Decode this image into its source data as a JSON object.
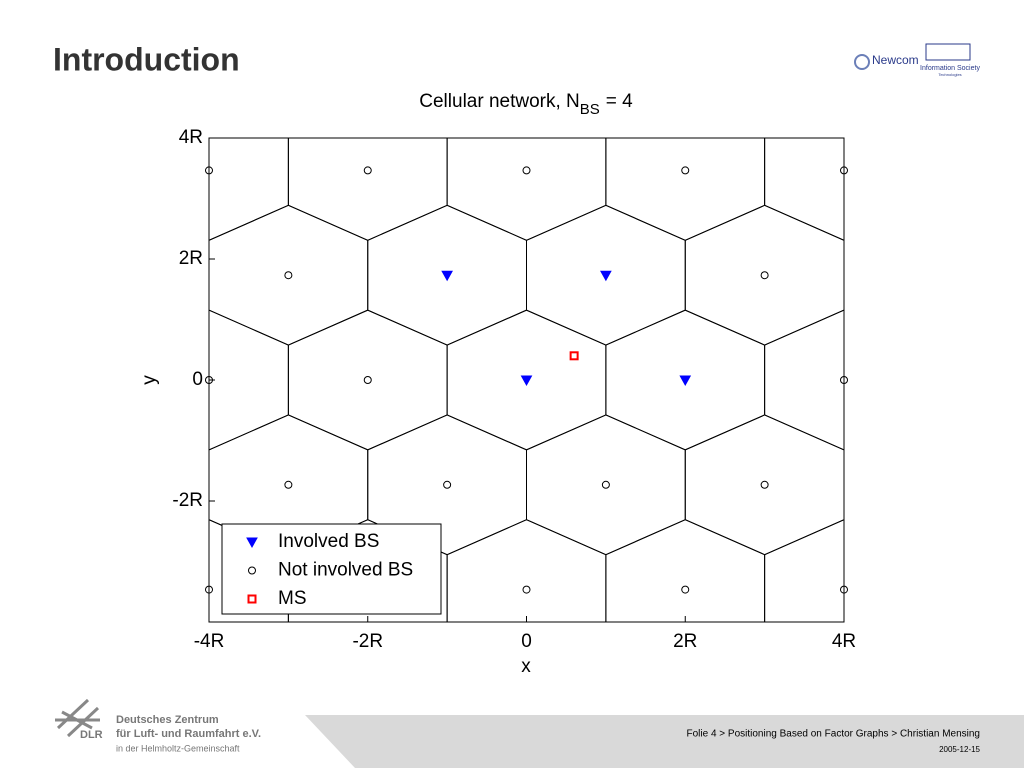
{
  "slide": {
    "heading": "Introduction",
    "logo_newcom": "Newcom",
    "logo_ist": "Information Society",
    "logo_ist_sub": "Technologies",
    "org_abbr": "DLR",
    "org_line1": "Deutsches Zentrum",
    "org_line2": "für Luft- und Raumfahrt e.V.",
    "org_line3": "in der Helmholtz-Gemeinschaft",
    "footer": "Folie 4 > Positioning Based on Factor Graphs > Christian Mensing",
    "date": "2005-12-15"
  },
  "chart_data": {
    "type": "scatter",
    "title": {
      "text": "Cellular network, N",
      "subscript": "BS",
      "suffix": "= 4"
    },
    "x_label": "x",
    "y_label": "y",
    "xlim": [
      -4,
      4
    ],
    "ylim": [
      -4,
      4
    ],
    "xticks": [
      {
        "value": -4,
        "label": "-4R"
      },
      {
        "value": -2,
        "label": "-2R"
      },
      0,
      {
        "value": 2,
        "label": "2R"
      },
      {
        "value": 4,
        "label": "4R"
      }
    ],
    "yticks": [
      {
        "value": -2,
        "label": "-2R"
      },
      0,
      {
        "value": 2,
        "label": "2R"
      },
      {
        "value": 4,
        "label": "4R"
      }
    ],
    "legend": "lower left",
    "series": [
      {
        "name": "Involved BS",
        "color": "#0000ff",
        "marker": "triangle-down",
        "x": [
          -1,
          1,
          0,
          2
        ],
        "values": [
          1.732,
          1.732,
          0,
          0
        ]
      },
      {
        "name": "Not involved BS",
        "color": "#000000",
        "marker": "circle",
        "x": [
          -4,
          -2,
          0,
          2,
          4,
          -3,
          3,
          -4,
          -2,
          4,
          -3,
          -1,
          1,
          3,
          -4,
          0,
          2,
          4
        ],
        "values": [
          3.464,
          3.464,
          3.464,
          3.464,
          3.464,
          1.732,
          1.732,
          0,
          0,
          0,
          -1.732,
          -1.732,
          -1.732,
          -1.732,
          -3.464,
          -3.464,
          -3.464,
          -3.464
        ]
      },
      {
        "name": "MS",
        "color": "#ff0000",
        "marker": "square",
        "x": [
          0.6
        ],
        "values": [
          0.4
        ]
      }
    ]
  }
}
